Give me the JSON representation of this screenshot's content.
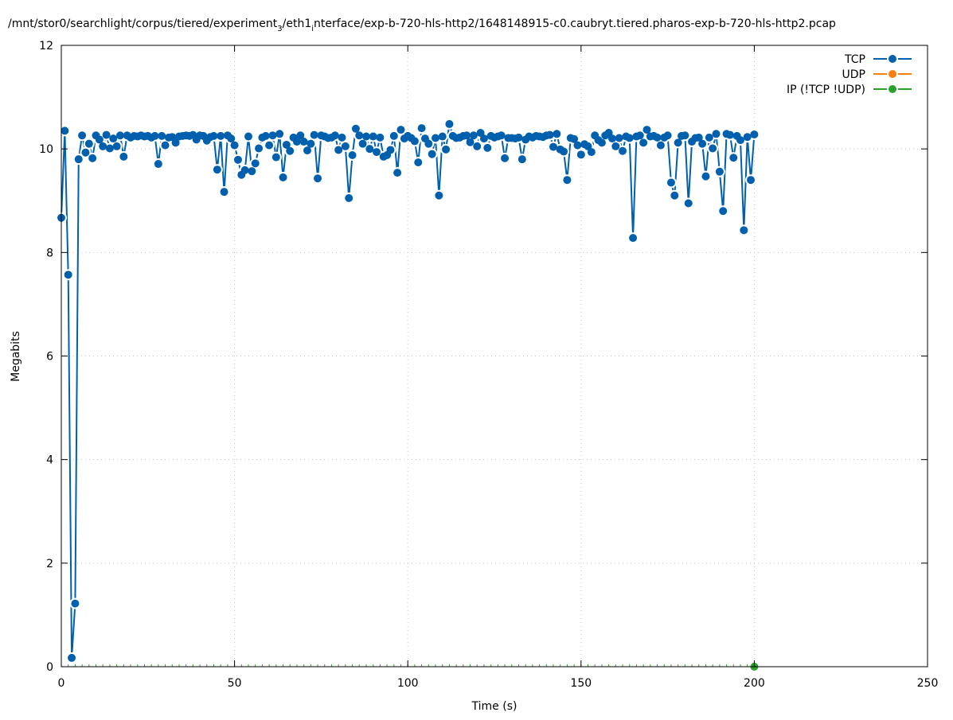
{
  "chart_data": {
    "type": "line",
    "title": "/mnt/stor0/searchlight/corpus/tiered/experiment_3/eth1_interface/exp-b-720-hls-http2/1648148915-c0.caubryt.tiered.pharos-exp-b-720-hls-http2.pcap",
    "title_parts": {
      "part1": "/mnt/stor0/searchlight/corpus/tiered/experiment",
      "sub1": "3",
      "part2": "/eth1",
      "sub2": "i",
      "part3": "nterface/exp-b-720-hls-http2/1648148915-c0.caubryt.tiered.pharos-exp-b-720-hls-http2.pcap"
    },
    "xlabel": "Time (s)",
    "ylabel": "Megabits",
    "xlim": [
      0,
      250
    ],
    "ylim": [
      0,
      12
    ],
    "x_ticks": [
      "0",
      "50",
      "100",
      "150",
      "200",
      "250"
    ],
    "y_ticks": [
      "0",
      "2",
      "4",
      "6",
      "8",
      "10",
      "12"
    ],
    "grid": true,
    "legend_position": "top-right",
    "series": [
      {
        "name": "TCP",
        "color": "#0060ad",
        "x": [
          0,
          1,
          2,
          3,
          4,
          5,
          6,
          7,
          8,
          9,
          10,
          11,
          12,
          13,
          14,
          15,
          16,
          17,
          18,
          19,
          20,
          21,
          22,
          23,
          24,
          25,
          26,
          27,
          28,
          29,
          30,
          31,
          32,
          33,
          34,
          35,
          36,
          37,
          38,
          39,
          40,
          41,
          42,
          43,
          44,
          45,
          46,
          47,
          48,
          49,
          50,
          51,
          52,
          53,
          54,
          55,
          56,
          57,
          58,
          59,
          60,
          61,
          62,
          63,
          64,
          65,
          66,
          67,
          68,
          69,
          70,
          71,
          72,
          73,
          74,
          75,
          76,
          77,
          78,
          79,
          80,
          81,
          82,
          83,
          84,
          85,
          86,
          87,
          88,
          89,
          90,
          91,
          92,
          93,
          94,
          95,
          96,
          97,
          98,
          99,
          100,
          101,
          102,
          103,
          104,
          105,
          106,
          107,
          108,
          109,
          110,
          111,
          112,
          113,
          114,
          115,
          116,
          117,
          118,
          119,
          120,
          121,
          122,
          123,
          124,
          125,
          126,
          127,
          128,
          129,
          130,
          131,
          132,
          133,
          134,
          135,
          136,
          137,
          138,
          139,
          140,
          141,
          142,
          143,
          144,
          145,
          146,
          147,
          148,
          149,
          150,
          151,
          152,
          153,
          154,
          155,
          156,
          157,
          158,
          159,
          160,
          161,
          162,
          163,
          164,
          165,
          166,
          167,
          168,
          169,
          170,
          171,
          172,
          173,
          174,
          175,
          176,
          177,
          178,
          179,
          180,
          181,
          182,
          183,
          184,
          185,
          186,
          187,
          188,
          189,
          190,
          191,
          192,
          193,
          194,
          195,
          196,
          197,
          198,
          199,
          200
        ],
        "values": [
          8.67,
          10.35,
          7.57,
          0.17,
          1.22,
          9.8,
          10.26,
          9.93,
          10.1,
          9.82,
          10.26,
          10.18,
          10.05,
          10.27,
          10.01,
          10.2,
          10.05,
          10.26,
          9.85,
          10.26,
          10.22,
          10.25,
          10.24,
          10.26,
          10.24,
          10.25,
          10.22,
          10.25,
          9.71,
          10.25,
          10.07,
          10.22,
          10.23,
          10.12,
          10.24,
          10.25,
          10.26,
          10.25,
          10.27,
          10.18,
          10.26,
          10.25,
          10.16,
          10.23,
          10.25,
          9.6,
          10.25,
          9.17,
          10.26,
          10.2,
          10.07,
          9.79,
          9.5,
          9.59,
          10.24,
          9.57,
          9.72,
          10.01,
          10.22,
          10.25,
          10.07,
          10.26,
          9.84,
          10.29,
          9.45,
          10.08,
          9.96,
          10.22,
          10.14,
          10.26,
          10.14,
          9.97,
          10.1,
          10.27,
          9.43,
          10.26,
          10.24,
          10.21,
          10.22,
          10.26,
          9.98,
          10.22,
          10.05,
          9.05,
          9.88,
          10.39,
          10.26,
          10.1,
          10.24,
          10.0,
          10.24,
          9.94,
          10.22,
          9.85,
          9.88,
          9.98,
          10.25,
          9.54,
          10.37,
          10.2,
          10.25,
          10.21,
          10.15,
          9.74,
          10.4,
          10.2,
          10.1,
          9.9,
          10.21,
          9.1,
          10.24,
          9.99,
          10.48,
          10.25,
          10.21,
          10.22,
          10.25,
          10.26,
          10.13,
          10.26,
          10.05,
          10.31,
          10.2,
          10.02,
          10.25,
          10.22,
          10.24,
          10.26,
          9.82,
          10.21,
          10.21,
          10.2,
          10.22,
          9.8,
          10.18,
          10.24,
          10.22,
          10.25,
          10.24,
          10.23,
          10.26,
          10.27,
          10.04,
          10.29,
          9.99,
          9.95,
          9.4,
          10.21,
          10.19,
          10.07,
          9.89,
          10.09,
          10.05,
          9.94,
          10.26,
          10.17,
          10.12,
          10.26,
          10.31,
          10.2,
          10.05,
          10.21,
          9.96,
          10.24,
          10.21,
          8.28,
          10.24,
          10.26,
          10.12,
          10.37,
          10.24,
          10.25,
          10.22,
          10.07,
          10.22,
          10.26,
          9.35,
          9.1,
          10.12,
          10.25,
          10.26,
          8.95,
          10.14,
          10.21,
          10.22,
          10.1,
          9.47,
          10.22,
          10.01,
          10.29,
          9.56,
          8.8,
          10.29,
          10.27,
          9.83,
          10.25,
          10.17,
          8.43,
          10.23,
          9.4,
          10.28
        ]
      },
      {
        "name": "UDP",
        "color": "#ff7f0e",
        "x": [],
        "values": []
      },
      {
        "name": "IP (!TCP  !UDP)",
        "color": "#2ca02c",
        "x": [
          0,
          2,
          4,
          6,
          8,
          10,
          12,
          14,
          16,
          18,
          20,
          22,
          24,
          26,
          28,
          30,
          32,
          34,
          36,
          38,
          40,
          42,
          44,
          46,
          48,
          50,
          52,
          54,
          56,
          58,
          60,
          62,
          64,
          66,
          68,
          70,
          72,
          74,
          76,
          78,
          80,
          82,
          84,
          86,
          88,
          90,
          92,
          94,
          96,
          98,
          100,
          102,
          104,
          106,
          108,
          110,
          112,
          114,
          116,
          118,
          120,
          122,
          124,
          126,
          128,
          130,
          132,
          134,
          136,
          138,
          140,
          142,
          144,
          146,
          148,
          150,
          152,
          154,
          156,
          158,
          160,
          162,
          164,
          166,
          168,
          170,
          172,
          174,
          176,
          178,
          180,
          182,
          184,
          186,
          188,
          190,
          192,
          194,
          196,
          198,
          200
        ],
        "values": [
          0,
          0,
          0,
          0,
          0,
          0,
          0,
          0,
          0,
          0,
          0,
          0,
          0,
          0,
          0,
          0,
          0,
          0,
          0,
          0,
          0,
          0,
          0,
          0,
          0,
          0,
          0,
          0,
          0,
          0,
          0,
          0,
          0,
          0,
          0,
          0,
          0,
          0,
          0,
          0,
          0,
          0,
          0,
          0,
          0,
          0,
          0,
          0,
          0,
          0,
          0,
          0,
          0,
          0,
          0,
          0,
          0,
          0,
          0,
          0,
          0,
          0,
          0,
          0,
          0,
          0,
          0,
          0,
          0,
          0,
          0,
          0,
          0,
          0,
          0,
          0,
          0,
          0,
          0,
          0,
          0,
          0,
          0,
          0,
          0,
          0,
          0,
          0,
          0,
          0,
          0,
          0,
          0,
          0,
          0,
          0,
          0,
          0,
          0,
          0,
          0
        ]
      }
    ]
  }
}
